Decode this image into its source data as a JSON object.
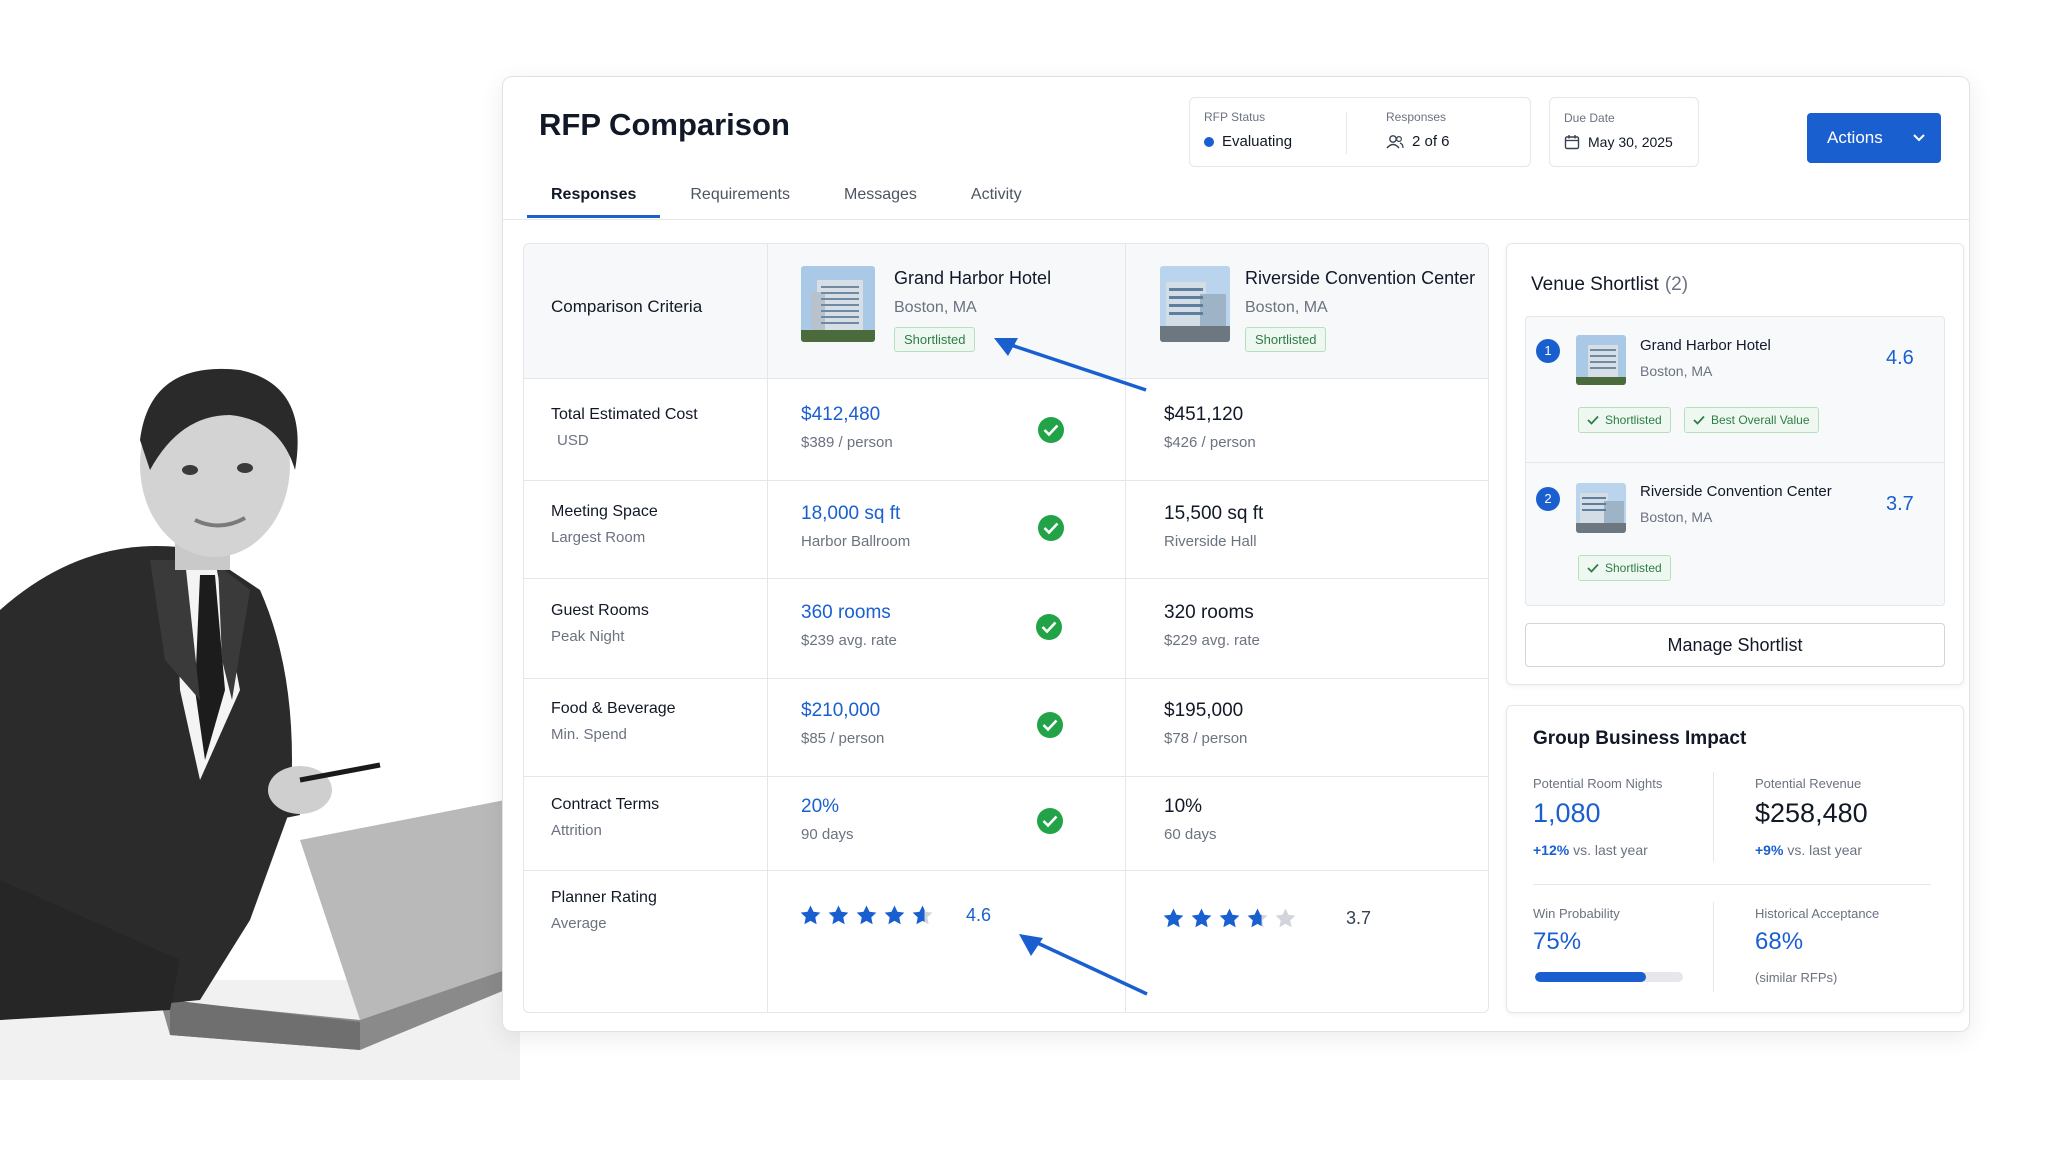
{
  "page": {
    "title": "RFP Comparison",
    "tabs": [
      {
        "label": "Responses",
        "active": true
      },
      {
        "label": "Requirements"
      },
      {
        "label": "Messages"
      },
      {
        "label": "Activity"
      }
    ],
    "status": {
      "label": "RFP Status",
      "value": "Evaluating",
      "color": "#1a5fd0"
    },
    "responses": {
      "label": "Responses",
      "value": "2 of 6"
    },
    "due": {
      "label": "Due Date",
      "value": "May 30, 2025"
    },
    "actions_label": "Actions"
  },
  "comparison": {
    "criteria_header": "Comparison Criteria",
    "venues": [
      {
        "name": "Grand Harbor Hotel",
        "location": "Boston, MA",
        "badge": "Shortlisted"
      },
      {
        "name": "Riverside Convention Center",
        "location": "Boston, MA",
        "badge": "Shortlisted"
      }
    ],
    "rows": [
      {
        "title": "Total Estimated Cost",
        "sub": "USD",
        "a_main": "$412,480",
        "a_sub": "$389 / person",
        "b_main": "$451,120",
        "b_sub": "$426 / person",
        "winner": "a"
      },
      {
        "title": "Meeting Space",
        "sub": "Largest Room",
        "a_main": "18,000 sq ft",
        "a_sub": "Harbor Ballroom",
        "b_main": "15,500 sq ft",
        "b_sub": "Riverside Hall",
        "winner": "a"
      },
      {
        "title": "Guest Rooms",
        "sub": "Peak Night",
        "a_main": "360 rooms",
        "a_sub": "$239 avg. rate",
        "b_main": "320 rooms",
        "b_sub": "$229 avg. rate",
        "winner": "a"
      },
      {
        "title": "Food & Beverage",
        "sub": "Min. Spend",
        "a_main": "$210,000",
        "a_sub": "$85 / person",
        "b_main": "$195,000",
        "b_sub": "$78 / person",
        "winner": "a"
      },
      {
        "title": "Contract Terms",
        "sub": "Attrition",
        "a_main": "20%",
        "a_sub": "90 days",
        "b_main": "10%",
        "b_sub": "60 days",
        "winner": "a"
      }
    ],
    "rating": {
      "title": "Planner Rating",
      "sub": "Average",
      "a_value": "4.6",
      "b_value": "3.7",
      "a_stars": 4.6,
      "b_stars": 3.7
    }
  },
  "shortlist": {
    "title": "Venue Shortlist",
    "count": "(2)",
    "items": [
      {
        "rank": "1",
        "name": "Grand Harbor Hotel",
        "location": "Boston, MA",
        "score": "4.6",
        "badges": [
          "Shortlisted",
          "Best Overall Value"
        ]
      },
      {
        "rank": "2",
        "name": "Riverside Convention Center",
        "location": "Boston, MA",
        "score": "3.7",
        "badges": [
          "Shortlisted"
        ]
      }
    ],
    "manage_label": "Manage Shortlist"
  },
  "impact": {
    "title": "Group Business Impact",
    "room_nights": {
      "label": "Potential Room Nights",
      "value": "1,080",
      "delta": "+12%",
      "delta_text": "vs. last year"
    },
    "revenue": {
      "label": "Potential Revenue",
      "value": "$258,480",
      "delta": "+9%",
      "delta_text": "vs. last year"
    },
    "win_probability": {
      "label": "Win Probability",
      "value": "75%",
      "progress": 0.75
    },
    "historical": {
      "label": "Historical Acceptance",
      "value": "68%",
      "note": "(similar RFPs)"
    }
  },
  "colors": {
    "accent": "#1a5fd0",
    "success": "#22a347"
  }
}
